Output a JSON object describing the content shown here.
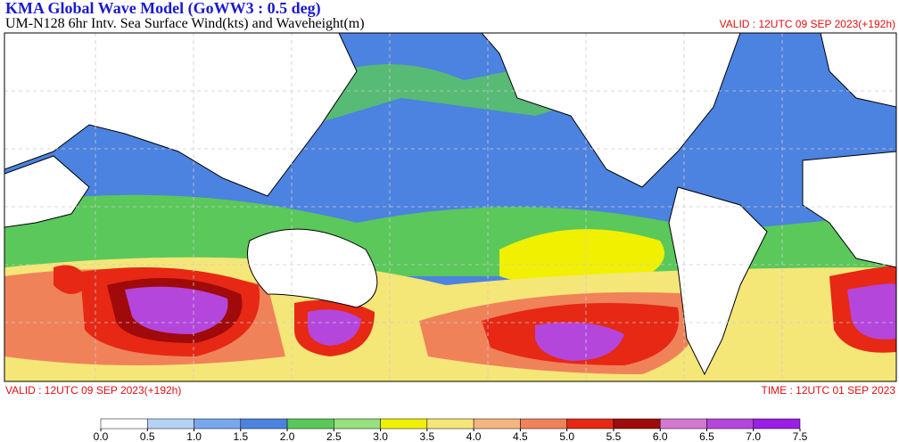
{
  "header": {
    "title": "KMA  Global Wave Model (GoWW3 : 0.5 deg)",
    "subtitle": "UM-N128  6hr Intv. Sea Surface Wind(kts) and Waveheight(m)",
    "valid_top": "VALID : 12UTC 09 SEP 2023(+192h)"
  },
  "footer": {
    "valid": "VALID : 12UTC 09 SEP 2023(+192h)",
    "time": "TIME : 12UTC 01 SEP 2023"
  },
  "colorbar": {
    "ticks": [
      {
        "value": 0,
        "label": "0.0"
      },
      {
        "value": 0.5,
        "label": "0.5"
      },
      {
        "value": 1,
        "label": "1.0"
      },
      {
        "value": 1.5,
        "label": "1.5"
      },
      {
        "value": 2,
        "label": "2.0"
      },
      {
        "value": 2.5,
        "label": "2.5"
      },
      {
        "value": 3,
        "label": "3.0"
      },
      {
        "value": 3.5,
        "label": "3.5"
      },
      {
        "value": 4,
        "label": "4.0"
      },
      {
        "value": 4.5,
        "label": "4.5"
      },
      {
        "value": 5,
        "label": "5.0"
      },
      {
        "value": 5.5,
        "label": "5.5"
      },
      {
        "value": 6,
        "label": "6.0"
      },
      {
        "value": 6.5,
        "label": "6.5"
      },
      {
        "value": 7,
        "label": "7.0"
      },
      {
        "value": 7.5,
        "label": "7.5"
      }
    ],
    "colors": [
      "#ffffff",
      "#b4d2f5",
      "#78a8ec",
      "#4c82e0",
      "#5ac85a",
      "#96e07e",
      "#f0f000",
      "#f5e678",
      "#f5b482",
      "#f0825a",
      "#e62814",
      "#a00a0a",
      "#d278d2",
      "#b446dc",
      "#9b1ee6"
    ]
  }
}
